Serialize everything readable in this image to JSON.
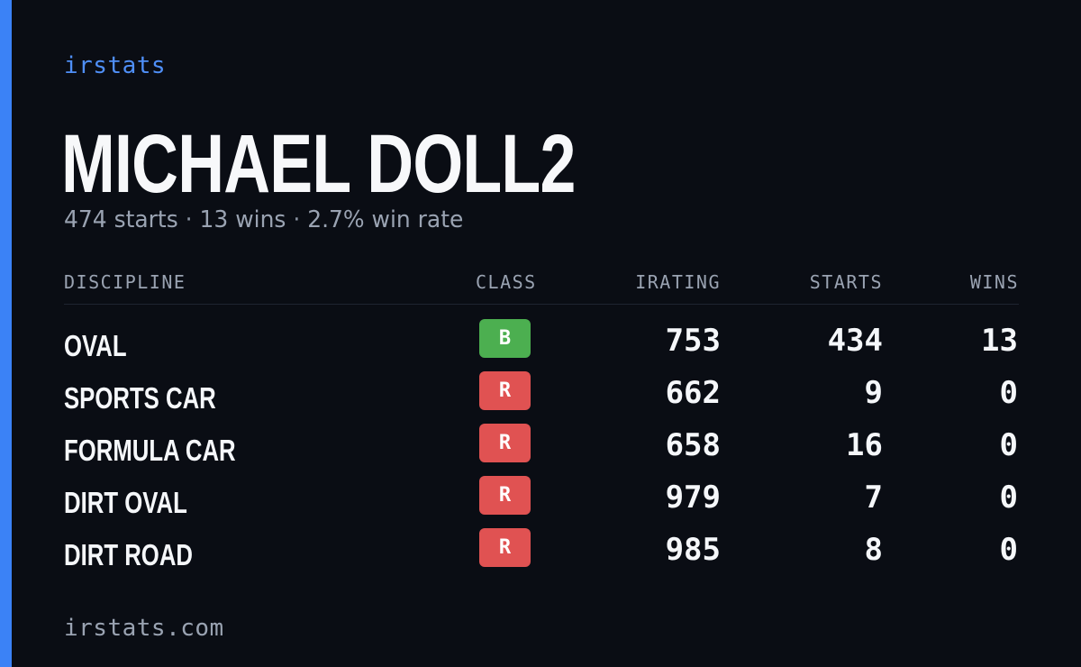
{
  "brand": "irstats",
  "driver": {
    "name": "MICHAEL DOLL2",
    "summary": {
      "starts": "474 starts",
      "wins": "13 wins",
      "win_rate": "2.7% win rate",
      "separator": "·"
    }
  },
  "table": {
    "headers": {
      "discipline": "DISCIPLINE",
      "class": "CLASS",
      "irating": "IRATING",
      "starts": "STARTS",
      "wins": "WINS"
    },
    "rows": [
      {
        "discipline": "OVAL",
        "class": "B",
        "class_color": "#4caf50",
        "irating": "753",
        "starts": "434",
        "wins": "13"
      },
      {
        "discipline": "SPORTS CAR",
        "class": "R",
        "class_color": "#e05252",
        "irating": "662",
        "starts": "9",
        "wins": "0"
      },
      {
        "discipline": "FORMULA CAR",
        "class": "R",
        "class_color": "#e05252",
        "irating": "658",
        "starts": "16",
        "wins": "0"
      },
      {
        "discipline": "DIRT OVAL",
        "class": "R",
        "class_color": "#e05252",
        "irating": "979",
        "starts": "7",
        "wins": "0"
      },
      {
        "discipline": "DIRT ROAD",
        "class": "R",
        "class_color": "#e05252",
        "irating": "985",
        "starts": "8",
        "wins": "0"
      }
    ]
  },
  "footer": "irstats.com",
  "colors": {
    "background": "#0a0d14",
    "accent": "#3b82f6",
    "class_b": "#4caf50",
    "class_r": "#e05252"
  }
}
